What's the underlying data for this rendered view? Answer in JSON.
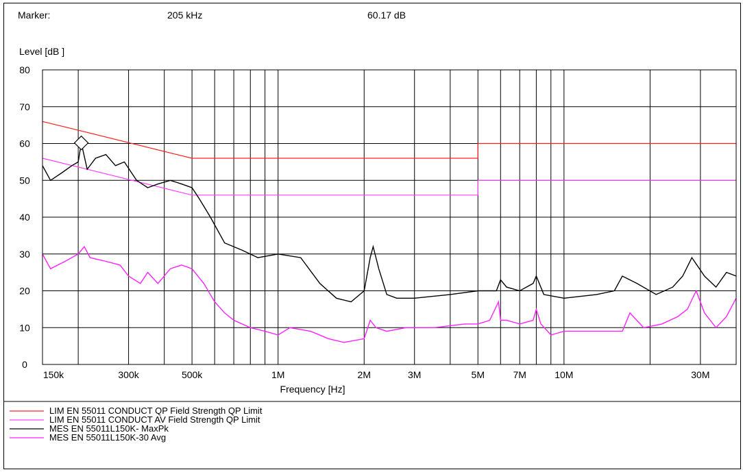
{
  "marker": {
    "label": "Marker:",
    "frequency": "205 kHz",
    "level": "60.17 dB"
  },
  "chart_data": {
    "type": "line",
    "ylabel": "Level [dB   ]",
    "xlabel": "Frequency [Hz]",
    "x_scale": "log",
    "xlim": [
      150000,
      40000000
    ],
    "ylim": [
      0,
      80
    ],
    "grid": true,
    "y_ticks": [
      0,
      10,
      20,
      30,
      40,
      50,
      60,
      70,
      80
    ],
    "x_tick_labels": [
      {
        "value": 150000,
        "label": "150k"
      },
      {
        "value": 300000,
        "label": "300k"
      },
      {
        "value": 500000,
        "label": "500k"
      },
      {
        "value": 1000000,
        "label": "1M"
      },
      {
        "value": 2000000,
        "label": "2M"
      },
      {
        "value": 3000000,
        "label": "3M"
      },
      {
        "value": 5000000,
        "label": "5M"
      },
      {
        "value": 7000000,
        "label": "7M"
      },
      {
        "value": 10000000,
        "label": "10M"
      },
      {
        "value": 30000000,
        "label": "30M"
      }
    ],
    "marker_point": {
      "x": 205000,
      "y": 60.17
    },
    "series": [
      {
        "name": "LIM  EN 55011 CONDUCT QP   Field Strength QP Limit",
        "color": "#ff2020",
        "x": [
          150000,
          500000,
          5000000,
          5000000,
          40000000
        ],
        "y": [
          66,
          56,
          56,
          60,
          60
        ]
      },
      {
        "name": "LIM  EN 55011 CONDUCT AV   Field Strength QP Limit",
        "color": "#ff40ff",
        "x": [
          150000,
          500000,
          5000000,
          5000000,
          40000000
        ],
        "y": [
          56,
          46,
          46,
          50,
          50
        ]
      },
      {
        "name": "MES  EN 55011L150K- MaxPk",
        "color": "#000000",
        "x": [
          150000,
          160000,
          175000,
          190000,
          200000,
          205000,
          215000,
          230000,
          250000,
          270000,
          290000,
          320000,
          350000,
          380000,
          420000,
          460000,
          500000,
          530000,
          580000,
          650000,
          750000,
          850000,
          1000000,
          1200000,
          1400000,
          1600000,
          1800000,
          2000000,
          2100000,
          2150000,
          2250000,
          2400000,
          2600000,
          3000000,
          4000000,
          5000000,
          5800000,
          6000000,
          6300000,
          7000000,
          7800000,
          8000000,
          8500000,
          10000000,
          13000000,
          15000000,
          16000000,
          18000000,
          21000000,
          24000000,
          26000000,
          28000000,
          31000000,
          34000000,
          37000000,
          40000000
        ],
        "y": [
          54,
          50,
          52,
          54,
          55,
          60.17,
          53,
          56,
          57,
          54,
          55,
          50,
          48,
          49,
          50,
          49,
          48,
          45,
          40,
          33,
          31,
          29,
          30,
          29,
          22,
          18,
          17,
          20,
          29,
          32,
          26,
          19,
          18,
          18,
          19,
          20,
          20,
          23,
          21,
          20,
          22,
          24,
          19,
          18,
          19,
          20,
          24,
          22,
          19,
          21,
          24,
          29,
          24,
          21,
          25,
          24
        ]
      },
      {
        "name": "MES  EN 55011L150K-30 Avg",
        "color": "#ff20ff",
        "x": [
          150000,
          160000,
          180000,
          200000,
          210000,
          220000,
          250000,
          280000,
          300000,
          330000,
          350000,
          380000,
          420000,
          460000,
          500000,
          550000,
          600000,
          650000,
          700000,
          800000,
          900000,
          1000000,
          1100000,
          1300000,
          1500000,
          1700000,
          2000000,
          2100000,
          2200000,
          2400000,
          2800000,
          3500000,
          4500000,
          5000000,
          5500000,
          5900000,
          6000000,
          6300000,
          7000000,
          7800000,
          8000000,
          8300000,
          9000000,
          10000000,
          13000000,
          16000000,
          17000000,
          19000000,
          22000000,
          25000000,
          27000000,
          29000000,
          31000000,
          34000000,
          37000000,
          40000000
        ],
        "y": [
          30,
          26,
          28,
          30,
          32,
          29,
          28,
          27,
          24,
          22,
          25,
          22,
          26,
          27,
          26,
          22,
          17,
          14,
          12,
          10,
          9,
          8,
          10,
          9,
          7,
          6,
          7,
          12,
          10,
          9,
          10,
          10,
          11,
          11,
          12,
          17,
          12,
          12,
          11,
          12,
          15,
          11,
          8,
          9,
          9,
          9,
          14,
          10,
          11,
          13,
          15,
          20,
          14,
          10,
          13,
          18
        ]
      }
    ]
  }
}
